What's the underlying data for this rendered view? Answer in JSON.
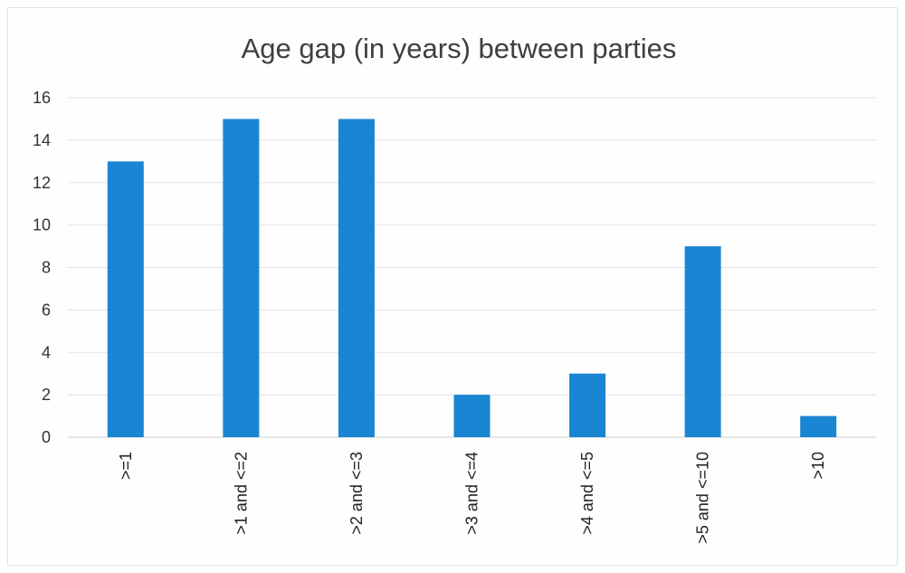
{
  "chart_data": {
    "type": "bar",
    "title": "Age gap (in years) between parties",
    "xlabel": "",
    "ylabel": "",
    "categories": [
      ">=1",
      ">1 and <=2",
      ">2 and <=3",
      ">3 and <=4",
      ">4 and <=5",
      ">5 and <=10",
      ">10"
    ],
    "values": [
      13,
      15,
      15,
      2,
      3,
      9,
      1
    ],
    "ylim": [
      0,
      16
    ],
    "yticks": [
      0,
      2,
      4,
      6,
      8,
      10,
      12,
      14,
      16
    ],
    "grid": true,
    "legend": "none",
    "bar_color": "#1a85d2"
  }
}
